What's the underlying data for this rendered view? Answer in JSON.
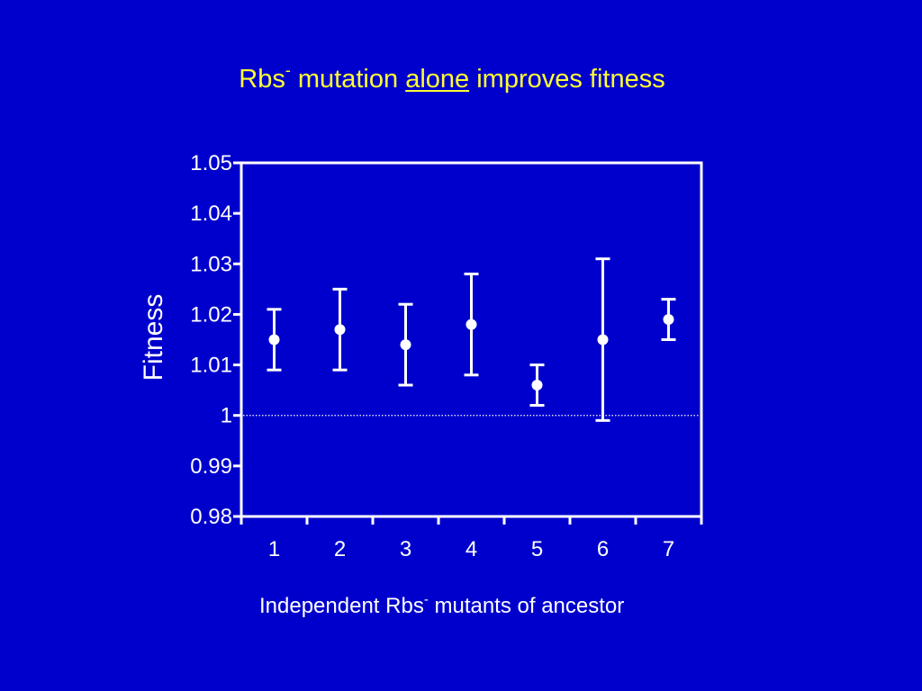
{
  "slide": {
    "title_parts": {
      "prefix": "Rbs",
      "superscript": "-",
      "middle": " mutation ",
      "emphasis": "alone",
      "suffix": " improves fitness"
    },
    "xlabel_parts": {
      "prefix": "Independent Rbs",
      "superscript": "-",
      "suffix": " mutants of ancestor"
    },
    "colors": {
      "background": "#0000cc",
      "title": "#ffff33",
      "foreground": "#ffffff"
    }
  },
  "chart_data": {
    "type": "scatter",
    "title": "Rbs- mutation alone improves fitness",
    "xlabel": "Independent Rbs- mutants of ancestor",
    "ylabel": "Fitness",
    "categories": [
      "1",
      "2",
      "3",
      "4",
      "5",
      "6",
      "7"
    ],
    "yticks": [
      "0.98",
      "0.99",
      "1",
      "1.01",
      "1.02",
      "1.03",
      "1.04",
      "1.05"
    ],
    "ylim": [
      0.98,
      1.05
    ],
    "grid": false,
    "reference_line": {
      "y": 1.0,
      "style": "dotted"
    },
    "series": [
      {
        "values": [
          1.015,
          1.017,
          1.014,
          1.018,
          1.006,
          1.015,
          1.019
        ],
        "error_low": [
          1.009,
          1.009,
          1.006,
          1.008,
          1.002,
          0.999,
          1.015
        ],
        "error_high": [
          1.021,
          1.025,
          1.022,
          1.028,
          1.01,
          1.031,
          1.023
        ]
      }
    ]
  }
}
